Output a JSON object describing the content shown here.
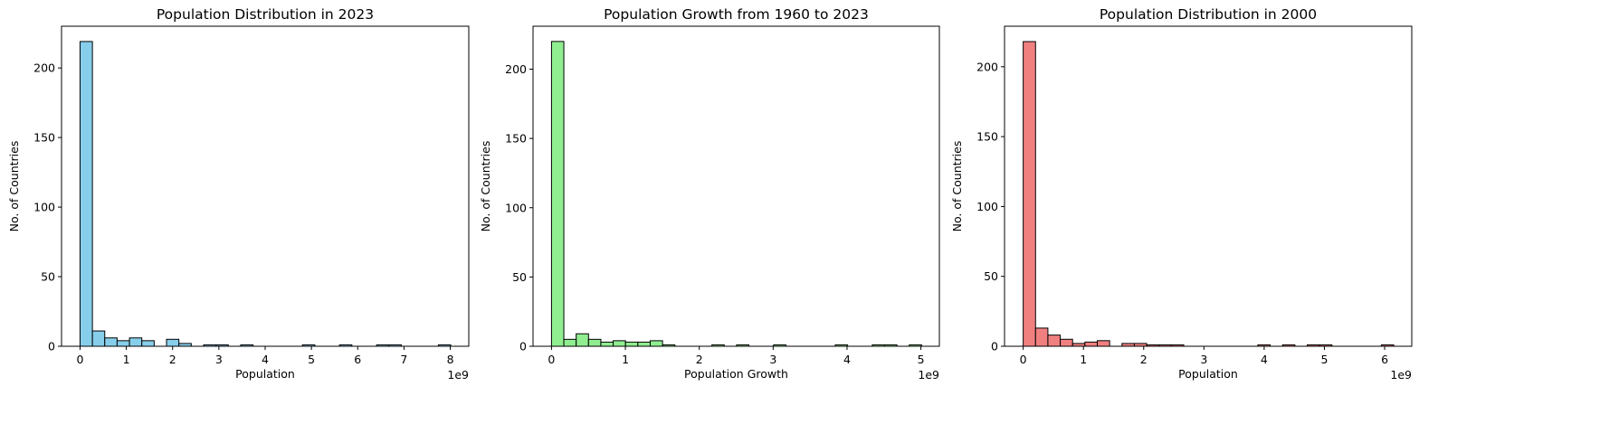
{
  "chart_data": [
    {
      "type": "bar",
      "title": "Population Distribution in 2023",
      "xlabel": "Population",
      "ylabel": "No. of Countries",
      "x_offset_label": "1e9",
      "color": "#87ceeb",
      "edge_color": "#000000",
      "xlim": [
        -0.4,
        8.4
      ],
      "ylim": [
        0,
        230
      ],
      "x_ticks": [
        0,
        1,
        2,
        3,
        4,
        5,
        6,
        7,
        8
      ],
      "x_tick_labels": [
        "0",
        "1",
        "2",
        "3",
        "4",
        "5",
        "6",
        "7",
        "8"
      ],
      "y_ticks": [
        0,
        50,
        100,
        150,
        200
      ],
      "y_tick_labels": [
        "0",
        "50",
        "100",
        "150",
        "200"
      ],
      "bin_start": 0,
      "bin_width": 0.267,
      "values": [
        219,
        11,
        6,
        4,
        6,
        4,
        0,
        5,
        2,
        0,
        1,
        1,
        0,
        1,
        0,
        0,
        0,
        0,
        1,
        0,
        0,
        1,
        0,
        0,
        1,
        1,
        0,
        0,
        0,
        1
      ]
    },
    {
      "type": "bar",
      "title": "Population Growth from 1960 to 2023",
      "xlabel": "Population Growth",
      "ylabel": "No. of Countries",
      "x_offset_label": "1e9",
      "color": "#90ee90",
      "edge_color": "#000000",
      "xlim": [
        -0.25,
        5.25
      ],
      "ylim": [
        0,
        231
      ],
      "x_ticks": [
        0,
        1,
        2,
        3,
        4,
        5
      ],
      "x_tick_labels": [
        "0",
        "1",
        "2",
        "3",
        "4",
        "5"
      ],
      "y_ticks": [
        0,
        50,
        100,
        150,
        200
      ],
      "y_tick_labels": [
        "0",
        "50",
        "100",
        "150",
        "200"
      ],
      "bin_start": 0,
      "bin_width": 0.167,
      "values": [
        220,
        5,
        9,
        5,
        3,
        4,
        3,
        3,
        4,
        1,
        0,
        0,
        0,
        1,
        0,
        1,
        0,
        0,
        1,
        0,
        0,
        0,
        0,
        1,
        0,
        0,
        1,
        1,
        0,
        1
      ]
    },
    {
      "type": "bar",
      "title": "Population Distribution in 2000",
      "xlabel": "Population",
      "ylabel": "No. of Countries",
      "x_offset_label": "1e9",
      "color": "#f08080",
      "edge_color": "#000000",
      "xlim": [
        -0.31,
        6.45
      ],
      "ylim": [
        0,
        229
      ],
      "x_ticks": [
        0,
        1,
        2,
        3,
        4,
        5,
        6
      ],
      "x_tick_labels": [
        "0",
        "1",
        "2",
        "3",
        "4",
        "5",
        "6"
      ],
      "y_ticks": [
        0,
        50,
        100,
        150,
        200
      ],
      "y_tick_labels": [
        "0",
        "50",
        "100",
        "150",
        "200"
      ],
      "bin_start": 0,
      "bin_width": 0.205,
      "values": [
        218,
        13,
        8,
        5,
        2,
        3,
        4,
        0,
        2,
        2,
        1,
        1,
        1,
        0,
        0,
        0,
        0,
        0,
        0,
        1,
        0,
        1,
        0,
        1,
        1,
        0,
        0,
        0,
        0,
        1
      ]
    }
  ]
}
